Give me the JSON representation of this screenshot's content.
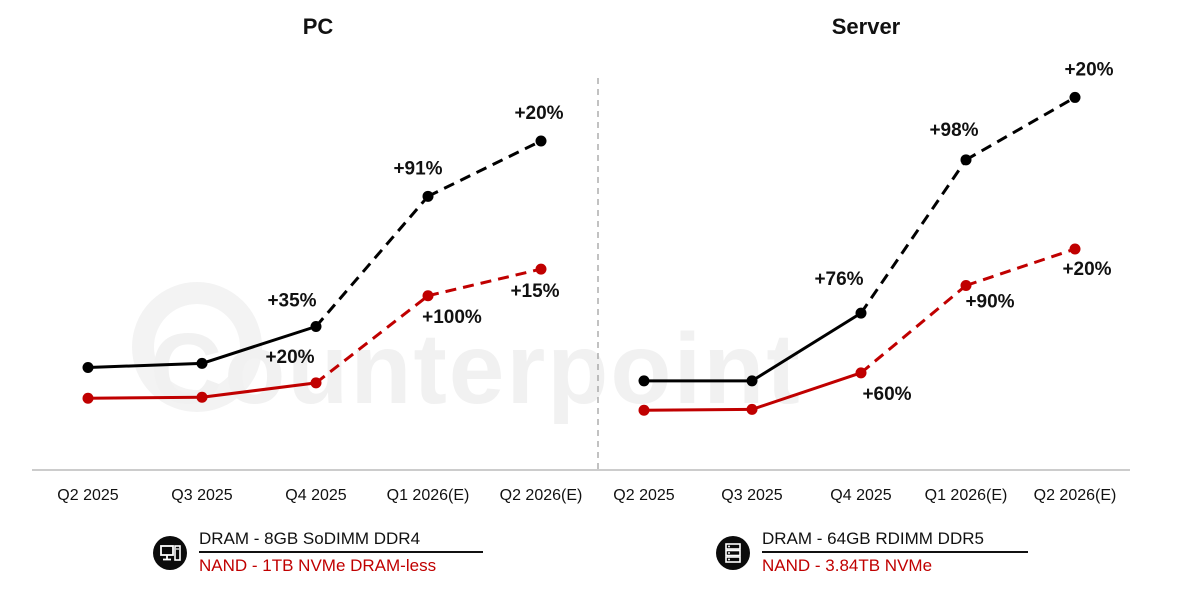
{
  "colors": {
    "dram": "#000000",
    "nand": "#c00000",
    "axis": "#bbbbbb",
    "divider": "#9a9a9a"
  },
  "watermark": {
    "text": "Counterpoint"
  },
  "chart_data": [
    {
      "type": "line",
      "title": "PC",
      "categories": [
        "Q2 2025",
        "Q3 2025",
        "Q4 2025",
        "Q1 2026(E)",
        "Q2 2026(E)"
      ],
      "series": [
        {
          "name": "DRAM - 8GB SoDIMM DDR4",
          "color": "#000000",
          "values": [
            1.0,
            1.04,
            1.4,
            2.67,
            3.21
          ],
          "labels": [
            "",
            "",
            "+35%",
            "+91%",
            "+20%"
          ],
          "estimated_from_index": 2
        },
        {
          "name": "NAND - 1TB NVMe DRAM-less",
          "color": "#c00000",
          "values": [
            0.7,
            0.71,
            0.85,
            1.7,
            1.96
          ],
          "labels": [
            "",
            "",
            "+20%",
            "+100%",
            "+15%"
          ],
          "estimated_from_index": 2
        }
      ],
      "ylim": [
        0,
        4.0
      ],
      "grid": false,
      "legend": "bottom"
    },
    {
      "type": "line",
      "title": "Server",
      "categories": [
        "Q2 2025",
        "Q3 2025",
        "Q4 2025",
        "Q1 2026(E)",
        "Q2 2026(E)"
      ],
      "series": [
        {
          "name": "DRAM - 64GB RDIMM DDR5",
          "color": "#000000",
          "values": [
            1.0,
            1.0,
            1.76,
            3.48,
            4.18
          ],
          "labels": [
            "",
            "",
            "+76%",
            "+98%",
            "+20%"
          ],
          "estimated_from_index": 2
        },
        {
          "name": "NAND - 3.84TB NVMe",
          "color": "#c00000",
          "values": [
            0.67,
            0.68,
            1.09,
            2.07,
            2.48
          ],
          "labels": [
            "",
            "",
            "+60%",
            "+90%",
            "+20%"
          ],
          "estimated_from_index": 2
        }
      ],
      "ylim": [
        0,
        4.6
      ],
      "grid": false,
      "legend": "bottom"
    }
  ]
}
